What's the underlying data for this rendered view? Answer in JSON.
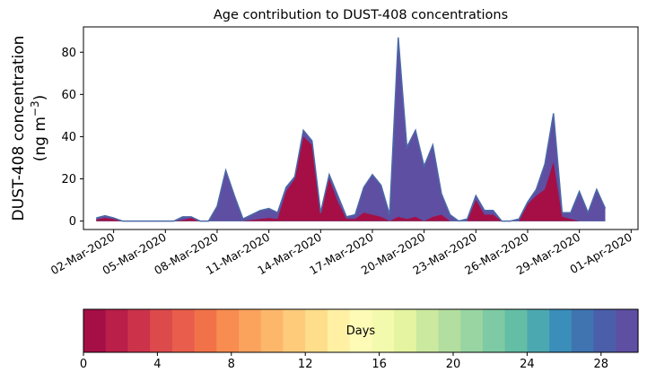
{
  "chart_data": {
    "type": "area",
    "title": "Age contribution to DUST-408 concentrations",
    "ylabel_line1": "DUST-408 concentration",
    "ylabel_line2": "(ng m",
    "ylabel_sup": "−3",
    "ylabel_close": ")",
    "xlim": [
      -0.75,
      31.4
    ],
    "ylim": [
      -4,
      92
    ],
    "yticks": [
      0,
      20,
      40,
      60,
      80
    ],
    "xtick_positions": [
      1,
      4,
      7,
      10,
      13,
      16,
      19,
      22,
      25,
      28,
      31
    ],
    "xtick_labels": [
      "02-Mar-2020",
      "05-Mar-2020",
      "08-Mar-2020",
      "11-Mar-2020",
      "14-Mar-2020",
      "17-Mar-2020",
      "20-Mar-2020",
      "23-Mar-2020",
      "26-Mar-2020",
      "29-Mar-2020",
      "01-Apr-2020"
    ],
    "x": [
      0,
      0.5,
      1,
      1.5,
      2,
      2.5,
      3,
      3.5,
      4,
      4.5,
      5,
      5.5,
      6,
      6.5,
      7,
      7.5,
      8,
      8.5,
      9,
      9.5,
      10,
      10.5,
      11,
      11.5,
      12,
      12.5,
      13,
      13.5,
      14,
      14.5,
      15,
      15.5,
      16,
      16.5,
      17,
      17.5,
      18,
      18.5,
      19,
      19.5,
      20,
      20.5,
      21,
      21.5,
      22,
      22.5,
      23,
      23.5,
      24,
      24.5,
      25,
      25.5,
      26,
      26.5,
      27,
      27.5,
      28,
      28.5,
      29,
      29.5,
      30,
      30.5
    ],
    "total": [
      1.5,
      2.5,
      1.5,
      0,
      0,
      0,
      0,
      0,
      0,
      0,
      2,
      2,
      0,
      0,
      7,
      24,
      12,
      1,
      3,
      5,
      6,
      4,
      16,
      21,
      43,
      38,
      4,
      22,
      12,
      2,
      3,
      16,
      22,
      17,
      3,
      87,
      35,
      43,
      26,
      36,
      13,
      3,
      0,
      1,
      12,
      5,
      5,
      0,
      0,
      1,
      9,
      15,
      27,
      51,
      4,
      4,
      14,
      4,
      15,
      6,
      null,
      null
    ],
    "fresh": [
      0.8,
      1.5,
      1,
      0,
      0,
      0,
      0,
      0,
      0,
      0,
      0.5,
      1.5,
      0,
      0,
      0,
      0,
      0,
      0,
      0.5,
      1,
      1.5,
      1,
      14,
      20,
      40,
      36,
      3.5,
      20,
      9,
      1,
      1,
      4,
      3,
      2,
      0,
      2,
      1,
      2,
      0,
      2,
      3,
      0,
      0,
      0,
      10,
      3,
      3,
      0,
      0,
      0,
      8,
      12,
      15,
      28,
      2,
      1,
      0,
      0,
      0,
      0,
      null,
      null
    ],
    "colorbar": {
      "label": "Days",
      "min": 0,
      "max": 30,
      "tick_values": [
        0,
        4,
        8,
        12,
        16,
        20,
        24,
        28
      ],
      "colors": [
        "#a50f46",
        "#b91f48",
        "#cc334b",
        "#dc4a4c",
        "#e85d4b",
        "#f17249",
        "#f88c51",
        "#fba25d",
        "#fdb76b",
        "#fecb7b",
        "#fede8b",
        "#fff0a4",
        "#fefbb7",
        "#f3faad",
        "#e4f4a0",
        "#cbe99f",
        "#b2de9f",
        "#98d5a3",
        "#7dcaa4",
        "#63bea5",
        "#4ca8b0",
        "#3b8dba",
        "#3f74b1",
        "#4b5ea9",
        "#5e4fa2"
      ]
    }
  }
}
